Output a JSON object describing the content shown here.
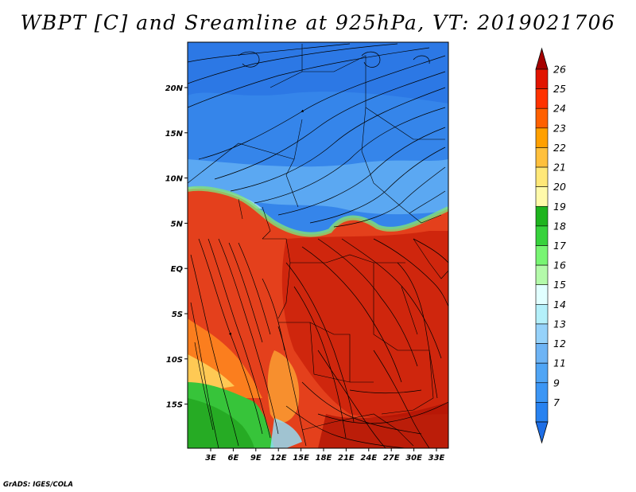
{
  "title": "WBPT [C] and Sreamline at 925hPa, VT: 2019021706",
  "credit": "GrADS: IGES/COLA",
  "map": {
    "lon_ticks": [
      "3E",
      "6E",
      "9E",
      "12E",
      "15E",
      "18E",
      "21E",
      "24E",
      "27E",
      "30E",
      "33E"
    ],
    "lat_ticks": [
      "20N",
      "15N",
      "10N",
      "5N",
      "EQ",
      "5S",
      "10S",
      "15S"
    ]
  },
  "colorbar": {
    "levels": [
      "7",
      "9",
      "11",
      "12",
      "13",
      "14",
      "15",
      "16",
      "17",
      "18",
      "19",
      "20",
      "21",
      "22",
      "23",
      "24",
      "25",
      "26"
    ],
    "colors": [
      "#1e6ee6",
      "#2882f0",
      "#3c96f5",
      "#50a5f5",
      "#6eb4f5",
      "#96d2fa",
      "#b4f0fa",
      "#e1ffff",
      "#b4faaa",
      "#78f573",
      "#37d23c",
      "#1eb41e",
      "#fffaaa",
      "#ffe878",
      "#ffc03c",
      "#ffa000",
      "#ff6000",
      "#ff3200",
      "#e11400",
      "#a50000"
    ]
  }
}
